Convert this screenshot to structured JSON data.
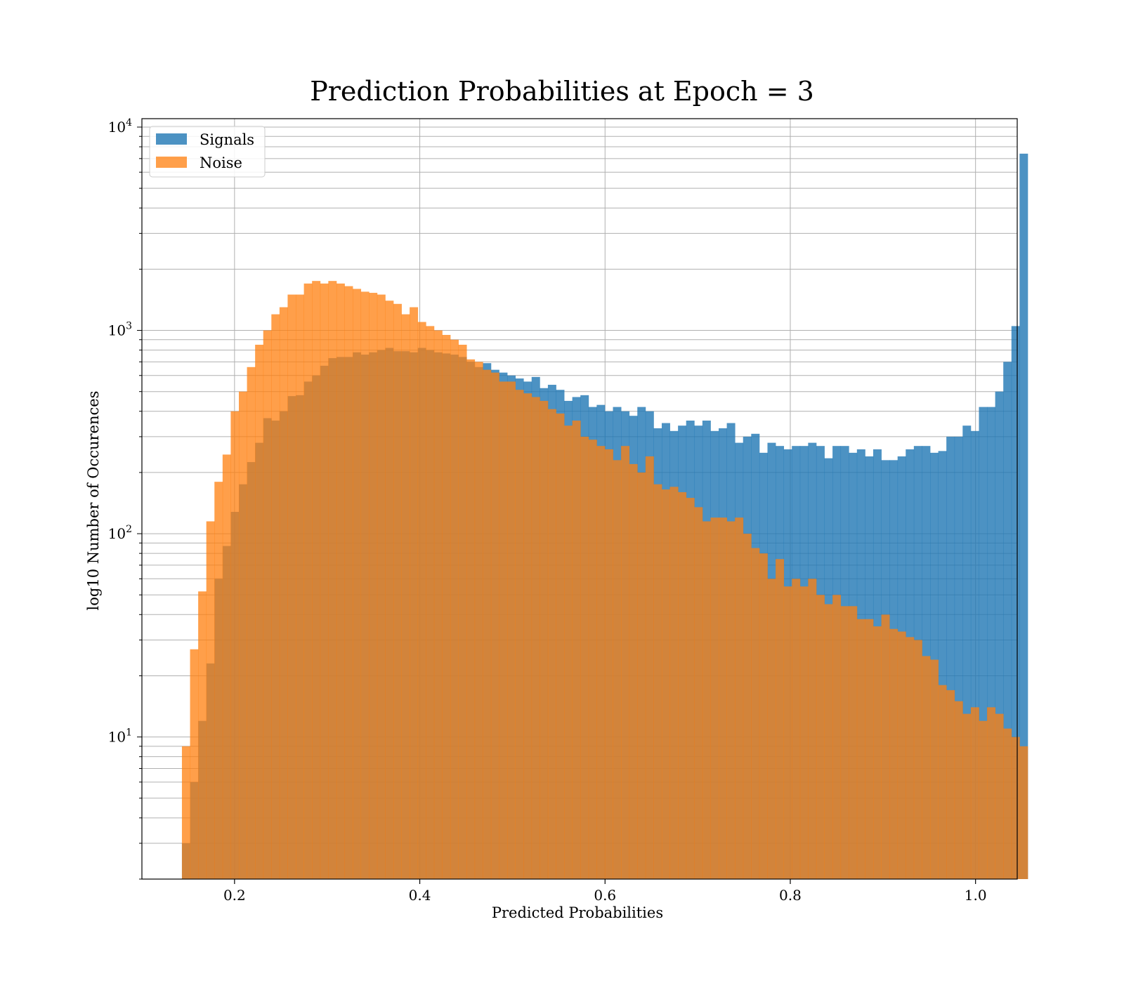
{
  "chart_data": {
    "type": "histogram",
    "title": "Prediction Probabilities at Epoch = 3",
    "xlabel": "Predicted Probabilities",
    "ylabel": "log10 Number of Occurences",
    "xlim": [
      0.1,
      1.045
    ],
    "ylim": [
      2,
      11000
    ],
    "yscale": "log",
    "grid": true,
    "legend_position": "top-left",
    "x_ticks": [
      {
        "value": 0.2,
        "label": "0.2"
      },
      {
        "value": 0.4,
        "label": "0.4"
      },
      {
        "value": 0.6,
        "label": "0.6"
      },
      {
        "value": 0.8,
        "label": "0.8"
      },
      {
        "value": 1.0,
        "label": "1.0"
      }
    ],
    "y_ticks": [
      {
        "value": 10,
        "base": "10",
        "exp": "1"
      },
      {
        "value": 100,
        "base": "10",
        "exp": "2"
      },
      {
        "value": 1000,
        "base": "10",
        "exp": "3"
      },
      {
        "value": 10000,
        "base": "10",
        "exp": "4"
      }
    ],
    "series": [
      {
        "name": "Signals",
        "color": "#1f77b4",
        "opacity": 0.8,
        "x_start": 0.1432,
        "bin_width": 0.00878,
        "values": [
          3,
          6,
          12,
          23,
          60,
          87,
          128,
          175,
          225,
          280,
          370,
          360,
          400,
          475,
          480,
          560,
          600,
          670,
          730,
          740,
          740,
          780,
          760,
          780,
          800,
          820,
          790,
          790,
          780,
          820,
          800,
          780,
          770,
          760,
          740,
          700,
          660,
          690,
          640,
          620,
          600,
          580,
          560,
          590,
          520,
          540,
          510,
          450,
          470,
          480,
          420,
          430,
          400,
          420,
          400,
          380,
          420,
          400,
          330,
          350,
          320,
          340,
          360,
          340,
          360,
          320,
          330,
          350,
          280,
          300,
          310,
          250,
          280,
          270,
          260,
          270,
          270,
          280,
          270,
          235,
          270,
          270,
          250,
          260,
          240,
          260,
          230,
          230,
          240,
          260,
          270,
          270,
          250,
          255,
          300,
          300,
          340,
          320,
          420,
          420,
          500,
          700,
          1050,
          7400
        ]
      },
      {
        "name": "Noise",
        "color": "#ff7f0e",
        "opacity": 0.75,
        "x_start": 0.1432,
        "bin_width": 0.00878,
        "values": [
          9,
          27,
          52,
          115,
          180,
          245,
          400,
          500,
          660,
          850,
          1000,
          1200,
          1300,
          1500,
          1500,
          1700,
          1750,
          1700,
          1750,
          1700,
          1650,
          1600,
          1550,
          1530,
          1500,
          1400,
          1350,
          1200,
          1300,
          1100,
          1050,
          1000,
          950,
          900,
          850,
          720,
          700,
          640,
          620,
          560,
          560,
          510,
          490,
          470,
          450,
          410,
          390,
          340,
          360,
          300,
          290,
          270,
          260,
          230,
          270,
          220,
          200,
          240,
          175,
          165,
          170,
          160,
          150,
          135,
          115,
          120,
          120,
          115,
          120,
          100,
          85,
          80,
          60,
          75,
          55,
          60,
          55,
          60,
          50,
          45,
          50,
          44,
          44,
          38,
          38,
          35,
          40,
          34,
          33,
          31,
          30,
          25,
          24,
          18,
          17,
          15,
          13,
          14,
          12,
          14,
          13,
          11,
          10,
          9
        ]
      }
    ]
  }
}
